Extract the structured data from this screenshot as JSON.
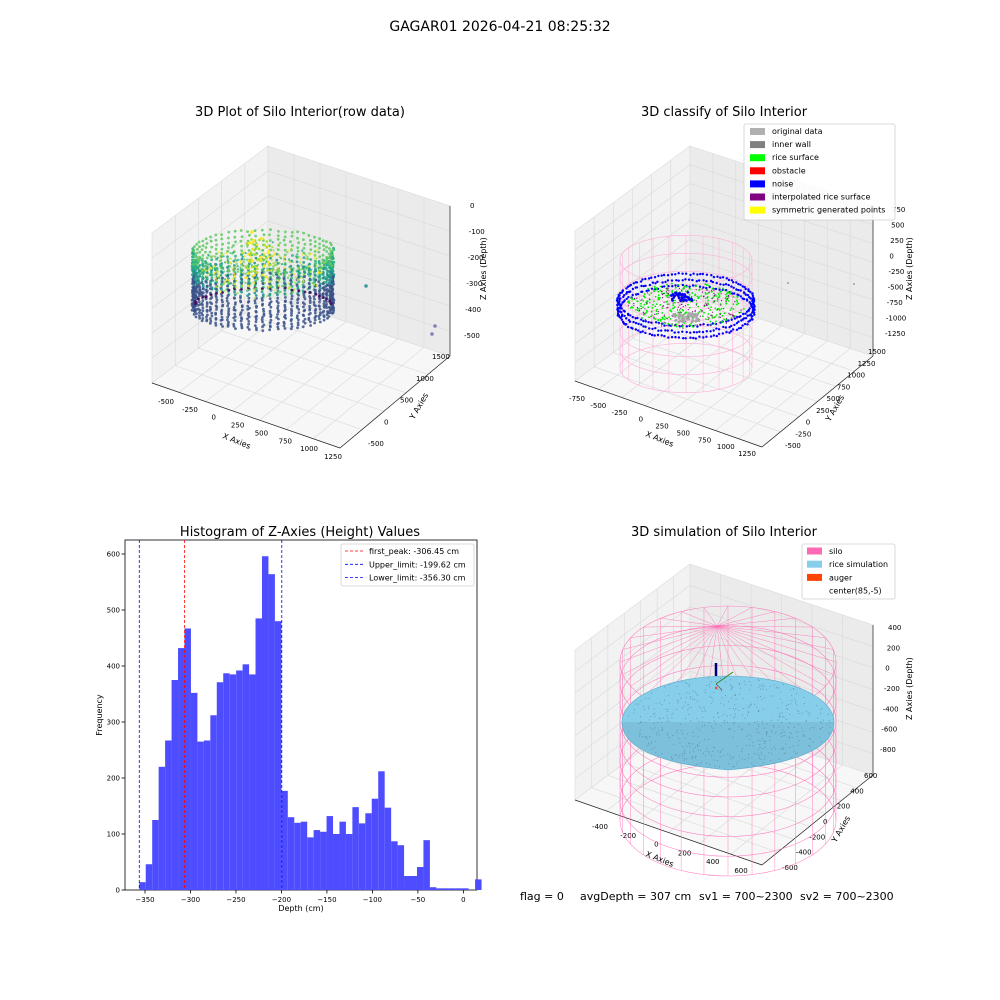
{
  "suptitle": "GAGAR01 2026-04-21 08:25:32",
  "footer": {
    "flag": "flag = 0",
    "avg": "avgDepth = 307 cm",
    "sv1": "sv1 = 700~2300",
    "sv2": "sv2 = 700~2300"
  },
  "colors": {
    "hist_bar": "#4d4dff",
    "first_peak": "#ff0000",
    "limit": "#0000ff",
    "silo": "#ff69b4",
    "rice_sim": "#87ceeb",
    "auger": "#ff4500"
  },
  "chart_data": [
    {
      "type": "scatter",
      "title": "3D Plot of Silo Interior(row data)",
      "xlabel": "X Axies",
      "ylabel": "Y Axies",
      "zlabel": "Z Axies (Depth)",
      "x_ticks": [
        "-500",
        "-250",
        "0",
        "250",
        "500",
        "750",
        "1000",
        "1250"
      ],
      "y_ticks": [
        "-500",
        "0",
        "500",
        "1000",
        "1500"
      ],
      "z_ticks": [
        "0",
        "-100",
        "-200",
        "-300",
        "-400",
        "-500"
      ],
      "colormap": "viridis"
    },
    {
      "type": "scatter",
      "title": "3D classify of Silo Interior",
      "xlabel": "X Axies",
      "ylabel": "Y Axies",
      "zlabel": "Z Axies (Depth)",
      "x_ticks": [
        "-750",
        "-500",
        "-250",
        "0",
        "250",
        "500",
        "750",
        "1000",
        "1250"
      ],
      "y_ticks": [
        "-500",
        "-250",
        "0",
        "250",
        "500",
        "750",
        "1000",
        "1250",
        "1500"
      ],
      "z_ticks": [
        "750",
        "500",
        "250",
        "0",
        "-250",
        "-500",
        "-750",
        "-1000",
        "-1250"
      ],
      "legend_position": "upper-right",
      "legend": [
        {
          "label": "original data",
          "color": "#b0b0b0"
        },
        {
          "label": "inner wall",
          "color": "#808080"
        },
        {
          "label": "rice surface",
          "color": "#00ff00"
        },
        {
          "label": "obstacle",
          "color": "#ff0000"
        },
        {
          "label": "noise",
          "color": "#0000ff"
        },
        {
          "label": "interpolated rice surface",
          "color": "#800080"
        },
        {
          "label": "symmetric generated points",
          "color": "#ffff00"
        }
      ]
    },
    {
      "type": "bar",
      "title": "Histogram of Z-Axies (Height) Values",
      "xlabel": "Depth (cm)",
      "ylabel": "Frequency",
      "xlim": [
        -372,
        15
      ],
      "ylim": [
        0,
        625
      ],
      "x_ticks": [
        -350,
        -300,
        -250,
        -200,
        -150,
        -100,
        -50,
        0
      ],
      "y_ticks": [
        0,
        100,
        200,
        300,
        400,
        500,
        600
      ],
      "bin_width": 7.1,
      "bin_start": -356.3,
      "values": [
        14,
        46,
        125,
        220,
        267,
        375,
        432,
        467,
        352,
        265,
        267,
        312,
        371,
        387,
        385,
        392,
        403,
        385,
        485,
        596,
        564,
        480,
        177,
        130,
        120,
        122,
        94,
        107,
        104,
        132,
        100,
        122,
        100,
        148,
        119,
        137,
        163,
        212,
        147,
        87,
        80,
        25,
        25,
        41,
        89,
        5,
        3,
        3,
        3,
        3,
        3,
        0,
        19
      ],
      "vlines": [
        {
          "value": -306.45,
          "label": "first_peak: -306.45 cm",
          "color": "#ff0000"
        },
        {
          "value": -199.62,
          "label": "Upper_limit: -199.62 cm",
          "color": "#0000ff"
        },
        {
          "value": -356.3,
          "label": "Lower_limit: -356.30 cm",
          "color": "#0000ff"
        }
      ],
      "legend_position": "upper-right"
    },
    {
      "type": "scatter",
      "title": "3D simulation of Silo Interior",
      "xlabel": "X Axies",
      "ylabel": "Y Axies",
      "zlabel": "Z Axies (Depth)",
      "x_ticks": [
        "-400",
        "-200",
        "0",
        "200",
        "400",
        "600"
      ],
      "y_ticks": [
        "-600",
        "-400",
        "-200",
        "0",
        "200",
        "400",
        "600"
      ],
      "z_ticks": [
        "400",
        "200",
        "0",
        "-200",
        "-400",
        "-600",
        "-800"
      ],
      "legend_position": "upper-right",
      "legend": [
        {
          "label": "silo",
          "color": "#ff69b4"
        },
        {
          "label": "rice simulation",
          "color": "#87ceeb"
        },
        {
          "label": "auger",
          "color": "#ff4500"
        },
        {
          "label": "center(85,-5)",
          "color": ""
        }
      ]
    }
  ]
}
